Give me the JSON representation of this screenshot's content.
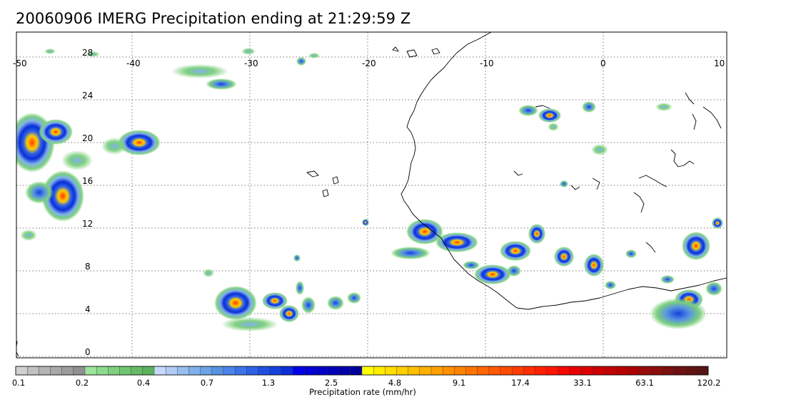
{
  "title": "20060906 IMERG Precipitation ending at 21:29:59 Z",
  "map": {
    "lon_range": [
      -50,
      10
    ],
    "lat_range": [
      -1,
      28.5
    ],
    "lon_ticks": [
      "-50",
      "-40",
      "-30",
      "-20",
      "-10",
      "0",
      "10"
    ],
    "lat_ticks": [
      "28",
      "24",
      "20",
      "16",
      "12",
      "8",
      "4",
      "0"
    ],
    "gridlines": "dotted"
  },
  "colorbar": {
    "label": "Precipitation rate (mm/hr)",
    "tick_labels": [
      "0.1",
      "0.2",
      "0.4",
      "0.7",
      "1.3",
      "2.5",
      "4.8",
      "9.1",
      "17.4",
      "33.1",
      "63.1",
      "120.2"
    ],
    "colors": [
      "#d0d0d0",
      "#c0c0c0",
      "#b4b4b4",
      "#a8a8a8",
      "#9c9c9c",
      "#909090",
      "#9ee49c",
      "#8cdc8c",
      "#7ed07e",
      "#70c670",
      "#66bb66",
      "#5cb15c",
      "#c8d8fa",
      "#b0ccf6",
      "#98beee",
      "#80b0ea",
      "#6aa2e6",
      "#5692e2",
      "#4a84ea",
      "#3c74e8",
      "#2e62e6",
      "#1f50e0",
      "#1440dc",
      "#0a2ed8",
      "#0000e8",
      "#0000d8",
      "#0000c8",
      "#0000b8",
      "#0000a8",
      "#000098",
      "#ffff00",
      "#ffec00",
      "#ffde00",
      "#ffd000",
      "#ffc000",
      "#ffb000",
      "#ffa000",
      "#ff9000",
      "#ff8200",
      "#ff7400",
      "#ff6600",
      "#ff5800",
      "#ff4a00",
      "#ff3c00",
      "#ff2e00",
      "#ff2000",
      "#ff1400",
      "#f60800",
      "#e80000",
      "#dc0000",
      "#d00000",
      "#c40000",
      "#b80000",
      "#ac0000",
      "#9a0a0a",
      "#8c0c0c",
      "#7c0e0e",
      "#6e1010",
      "#621212",
      "#561414"
    ]
  }
}
